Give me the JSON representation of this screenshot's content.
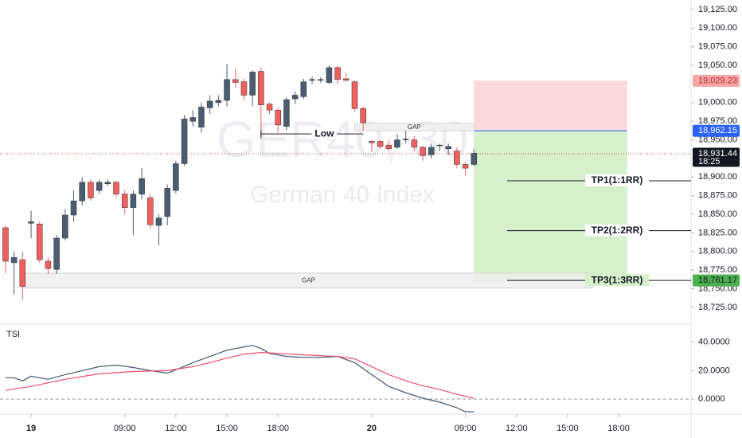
{
  "chart_data": [
    {
      "type": "candlestick",
      "watermark": "GER40, 30",
      "subtitle": "German 40 Index",
      "up_color": "#4b5d6e",
      "down_color": "#f0605d",
      "open": [
        18832,
        18785,
        18789,
        18838,
        18837,
        18787,
        18776,
        18818,
        18849,
        18868,
        18893,
        18882,
        18891,
        18893,
        18877,
        18859,
        18877,
        18872,
        18835,
        18847,
        18882,
        18918,
        18975,
        18967,
        18993,
        19000,
        19003,
        19031,
        19028,
        19010,
        19042,
        18998,
        18990,
        18968,
        19005,
        19008,
        19030,
        19030,
        19027,
        19047,
        19032,
        19028,
        18992,
        18948,
        18948,
        18943,
        18940,
        18950,
        18950,
        18940,
        18930,
        18942,
        18938,
        18935,
        18917,
        18917
      ],
      "high": [
        18835,
        18800,
        18800,
        18855,
        18840,
        18792,
        18822,
        18857,
        18882,
        18900,
        18897,
        18897,
        18897,
        18895,
        18882,
        18882,
        18912,
        18877,
        18850,
        18890,
        18922,
        18983,
        18990,
        19000,
        19010,
        19010,
        19052,
        19045,
        19032,
        19043,
        19047,
        19000,
        18993,
        19007,
        19015,
        19032,
        19035,
        19034,
        19050,
        19050,
        19040,
        19030,
        18995,
        18950,
        18950,
        18950,
        18958,
        18962,
        18955,
        18942,
        18945,
        18945,
        18945,
        18940,
        18920,
        18938
      ],
      "low": [
        18771,
        18742,
        18735,
        18818,
        18785,
        18770,
        18770,
        18815,
        18840,
        18862,
        18868,
        18878,
        18888,
        18872,
        18850,
        18822,
        18870,
        18830,
        18808,
        18835,
        18878,
        18915,
        18968,
        18960,
        18985,
        18995,
        18995,
        19020,
        19003,
        18995,
        18950,
        18985,
        18960,
        18963,
        18998,
        19005,
        19025,
        19027,
        19025,
        19025,
        19028,
        18988,
        18962,
        18934,
        18938,
        18935,
        18938,
        18945,
        18935,
        18922,
        18925,
        18935,
        18930,
        18912,
        18902,
        18915
      ],
      "close": [
        18787,
        18792,
        18753,
        18840,
        18789,
        18777,
        18818,
        18849,
        18868,
        18893,
        18872,
        18893,
        18893,
        18877,
        18859,
        18877,
        18898,
        18836,
        18845,
        18885,
        18918,
        18978,
        18980,
        18994,
        19002,
        19003,
        19031,
        19027,
        19010,
        19041,
        18997,
        18990,
        18970,
        19004,
        19010,
        19028,
        19031,
        19031,
        19047,
        19031,
        19030,
        18992,
        18973,
        18946,
        18941,
        18938,
        18950,
        18951,
        18940,
        18929,
        18940,
        18943,
        18941,
        18917,
        18912,
        18932
      ],
      "xlim": [
        -0.65,
        80.5
      ],
      "ylim": [
        18702.5,
        19137.8
      ],
      "yticks": [
        {
          "value": 19125,
          "label": "19,125.00"
        },
        {
          "value": 19100,
          "label": "19,100.00"
        },
        {
          "value": 19075,
          "label": "19,075.00"
        },
        {
          "value": 19050,
          "label": "19,050.00"
        },
        {
          "value": 19000,
          "label": "19,000.00"
        },
        {
          "value": 18975,
          "label": "18,975.00"
        },
        {
          "value": 18950,
          "label": "18,950.00"
        },
        {
          "value": 18900,
          "label": "18,900.00"
        },
        {
          "value": 18875,
          "label": "18,875.00"
        },
        {
          "value": 18850,
          "label": "18,850.00"
        },
        {
          "value": 18825,
          "label": "18,825.00"
        },
        {
          "value": 18800,
          "label": "18,800.00"
        },
        {
          "value": 18775,
          "label": "18,775.00"
        },
        {
          "value": 18750,
          "label": "18,750.00"
        },
        {
          "value": 18725,
          "label": "18,725.00"
        }
      ],
      "xticks": [
        {
          "value": 3,
          "label": "19"
        },
        {
          "value": 14,
          "label": "09:00"
        },
        {
          "value": 20,
          "label": "12:00"
        },
        {
          "value": 26,
          "label": "15:00"
        },
        {
          "value": 32,
          "label": "18:00"
        },
        {
          "value": 43,
          "label": "20"
        },
        {
          "value": 54,
          "label": "09:00"
        },
        {
          "value": 60,
          "label": "12:00"
        },
        {
          "value": 66,
          "label": "15:00"
        },
        {
          "value": 72,
          "label": "18:00"
        }
      ],
      "position": {
        "stop": 19029.23,
        "entry": 18962.15,
        "target": 18761.17,
        "start": 55,
        "end": 73,
        "stop_color": "#fbd9d9",
        "target_color": "#d5f0cb",
        "entry_color": "#2962ff"
      },
      "gaps": [
        {
          "label": "GAP",
          "top": 18972,
          "bottom": 18962,
          "start": 41,
          "end": 55
        },
        {
          "label": "GAP",
          "top": 18771,
          "bottom": 18751,
          "start": 2.15,
          "end": 69
        }
      ],
      "low_line": {
        "label": "Low",
        "value": 18958,
        "start": 30,
        "end": 42
      },
      "targets": [
        {
          "label": "TP1(1:1RR)",
          "value": 18895,
          "start": 58.9
        },
        {
          "label": "TP2(1:2RR)",
          "value": 18828,
          "start": 58.9
        },
        {
          "label": "TP3(1:3RR)",
          "value": 18761.17,
          "start": 58.9
        }
      ],
      "price_labels": [
        {
          "value": 19029.23,
          "label": "19,029.23",
          "color": "#f8a5a5",
          "text_color": "#b22833"
        },
        {
          "value": 18962.15,
          "label": "18,962.15",
          "color": "#2962ff",
          "text_color": "#ffffff"
        },
        {
          "value": 18931.44,
          "label": "18,931.44",
          "sub": "18:25",
          "color": "#131722",
          "text_color": "#ffffff"
        },
        {
          "value": 18761.17,
          "label": "18,761.17",
          "color": "#4caf50",
          "text_color": "#131722"
        }
      ],
      "current_price_color": "#e0433f"
    },
    {
      "type": "line",
      "title": "TSI",
      "ylim": [
        -10.6,
        52.2
      ],
      "yticks": [
        {
          "value": 40,
          "label": "40.0000"
        },
        {
          "value": 20,
          "label": "20.0000"
        },
        {
          "value": 0,
          "label": "0.0000"
        }
      ],
      "zero_line": 0,
      "series": [
        {
          "color": "#3d5873",
          "x": [
            0,
            1,
            2,
            3,
            5,
            7,
            9,
            11,
            13,
            15,
            17,
            19,
            20,
            22,
            24,
            26,
            28,
            29,
            30,
            31,
            33,
            35,
            37,
            39,
            41,
            43,
            45,
            47,
            49,
            51,
            53,
            54,
            55
          ],
          "values": [
            15.0,
            15.0,
            12.8,
            16.1,
            13.9,
            17.2,
            20.0,
            22.8,
            23.9,
            22.2,
            20.0,
            18.3,
            20.6,
            25.6,
            30.0,
            34.4,
            36.7,
            37.8,
            35.6,
            32.2,
            30.0,
            29.4,
            29.4,
            30.0,
            25.6,
            17.2,
            8.9,
            4.4,
            0.6,
            -2.2,
            -6.1,
            -8.9,
            -8.9
          ]
        },
        {
          "color": "#ec4d6a",
          "x": [
            0,
            3,
            7,
            11,
            15,
            19,
            22,
            24,
            26,
            28,
            30,
            32,
            35,
            39,
            41,
            43,
            45,
            47,
            49,
            51,
            53,
            55
          ],
          "values": [
            6.1,
            8.9,
            13.9,
            17.8,
            19.4,
            20.0,
            22.8,
            25.6,
            28.9,
            31.7,
            32.8,
            32.2,
            31.1,
            30.0,
            28.3,
            22.8,
            17.2,
            12.8,
            9.4,
            6.7,
            3.3,
            0.6
          ]
        }
      ]
    }
  ]
}
